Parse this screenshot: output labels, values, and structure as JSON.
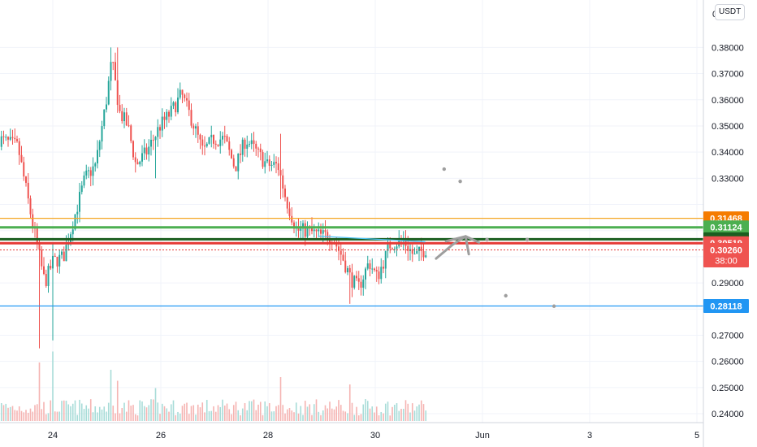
{
  "currency_label": "USDT",
  "top_tick_fragment": "0",
  "chart_data": {
    "type": "candlestick",
    "y_ticks": [
      "0.38000",
      "0.37000",
      "0.36000",
      "0.35000",
      "0.34000",
      "0.33000",
      "0.29000",
      "0.27000",
      "0.26000",
      "0.25000",
      "0.24000"
    ],
    "ylim": [
      0.2366,
      0.3972
    ],
    "x_ticks": [
      "24",
      "26",
      "28",
      "30",
      "Jun",
      "3",
      "5"
    ],
    "grid": true,
    "colors": {
      "up": "#26a69a",
      "down": "#ef5350",
      "volume_up": "#a8dcd8",
      "volume_down": "#f5b4b2"
    },
    "price_badges": [
      {
        "label": "0.31468",
        "value": 0.31468,
        "bg": "#f57c00",
        "fg": "#ffffff"
      },
      {
        "label": "0.31124",
        "value": 0.31124,
        "bg": "#4caf50",
        "fg": "#ffffff"
      },
      {
        "label": "0.30670",
        "value": 0.3067,
        "bg": "#1b5e20",
        "fg": "#ffffff"
      },
      {
        "label": "0.30519",
        "value": 0.30519,
        "bg": "#ef5350",
        "fg": "#ffffff"
      },
      {
        "label": "0.30260",
        "value": 0.3026,
        "bg": "#ef5350",
        "fg": "#ffffff",
        "sub": "38:00"
      },
      {
        "label": "0.28118",
        "value": 0.28118,
        "bg": "#2196f3",
        "fg": "#ffffff"
      }
    ],
    "horizontal_lines": [
      {
        "value": 0.31468,
        "color": "#f5a623",
        "width": 1.2
      },
      {
        "value": 0.31124,
        "color": "#4caf50",
        "width": 3
      },
      {
        "value": 0.3067,
        "color": "#1b5e20",
        "width": 3
      },
      {
        "value": 0.30519,
        "color": "#e53935",
        "width": 3
      },
      {
        "value": 0.3026,
        "color": "#e53935",
        "width": 1,
        "dotted": true
      },
      {
        "value": 0.28118,
        "color": "#2196f3",
        "width": 1.2
      }
    ],
    "trendline": {
      "from": [
        28.95,
        0.3079
      ],
      "to": [
        30.95,
        0.3057
      ],
      "color": "#4fc3f7"
    },
    "projection": {
      "points": [
        [
          31.15,
          0.2993
        ],
        [
          31.45,
          0.3045
        ],
        [
          31.7,
          0.3078
        ],
        [
          31.95,
          0.3055
        ]
      ],
      "color": "#9e9e9e"
    },
    "dots": [
      [
        31.3,
        0.3335
      ],
      [
        31.6,
        0.3288
      ],
      [
        32.1,
        0.3066
      ],
      [
        32.45,
        0.2851
      ],
      [
        32.85,
        0.3066
      ],
      [
        33.35,
        0.2811
      ]
    ],
    "candles": []
  }
}
